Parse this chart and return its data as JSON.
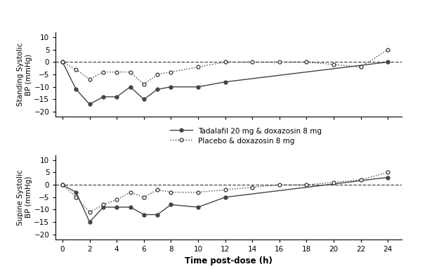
{
  "standing_x_tadalafil": [
    0,
    1,
    2,
    3,
    4,
    5,
    6,
    7,
    8,
    10,
    12,
    24
  ],
  "standing_y_tadalafil": [
    0,
    -11,
    -17,
    -14,
    -14,
    -10,
    -15,
    -11,
    -10,
    -10,
    -8,
    0
  ],
  "standing_x_placebo": [
    0,
    1,
    2,
    3,
    4,
    5,
    6,
    7,
    8,
    10,
    12,
    14,
    16,
    18,
    20,
    22,
    24
  ],
  "standing_y_placebo": [
    0,
    -3,
    -7,
    -4,
    -4,
    -4,
    -9,
    -5,
    -4,
    -2,
    0,
    0,
    0,
    0,
    -1,
    -2,
    5
  ],
  "supine_x_tadalafil": [
    0,
    1,
    2,
    3,
    4,
    5,
    6,
    7,
    8,
    10,
    12,
    24
  ],
  "supine_y_tadalafil": [
    0,
    -3,
    -15,
    -9,
    -9,
    -9,
    -12,
    -12,
    -8,
    -9,
    -5,
    3
  ],
  "supine_x_placebo": [
    0,
    1,
    2,
    3,
    4,
    5,
    6,
    7,
    8,
    10,
    12,
    14,
    16,
    18,
    20,
    22,
    24
  ],
  "supine_y_placebo": [
    0,
    -5,
    -11,
    -8,
    -6,
    -3,
    -5,
    -2,
    -3,
    -3,
    -2,
    -1,
    0,
    0,
    1,
    2,
    5
  ],
  "xticks": [
    0,
    2,
    4,
    6,
    8,
    10,
    12,
    14,
    16,
    18,
    20,
    22,
    24
  ],
  "yticks": [
    -20,
    -15,
    -10,
    -5,
    0,
    5,
    10
  ],
  "ylim": [
    -22,
    12
  ],
  "xlabel": "Time post-dose (h)",
  "ylabel_standing": "Standing Systolic\nBP (mmHg)",
  "ylabel_supine": "Supine Systolic\nBP (mmHg)",
  "legend_tadalafil": "Tadalafil 20 mg & doxazosin 8 mg",
  "legend_placebo": "Placebo & doxazosin 8 mg",
  "line_color": "#444444",
  "dashed_zero_color": "#444444",
  "bg_color": "#ffffff"
}
